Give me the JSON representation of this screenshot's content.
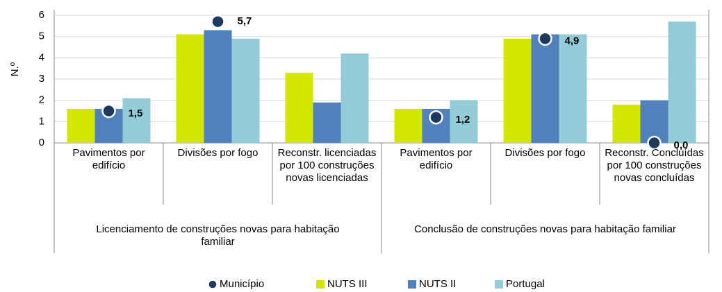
{
  "chart_data": {
    "type": "bar",
    "ylabel": "N.º",
    "categories": [
      "Pavimentos por edifício",
      "Divisões por fogo",
      "Reconstr. licenciadas por 100 construções novas licenciadas",
      "Pavimentos por edifício",
      "Divisões por fogo",
      "Reconstr. Concluídas por 100 construções novas concluídas"
    ],
    "groups": [
      "Licenciamento de construções novas para habitação familiar",
      "Conclusão de construções novas para habitação familiar"
    ],
    "series": [
      {
        "name": "Município",
        "color": "#1f3a5f",
        "marker": "dot",
        "values": [
          1.5,
          5.7,
          null,
          1.2,
          4.9,
          0.0
        ],
        "value_labels": [
          "1,5",
          "5,7",
          null,
          "1,2",
          "4,9",
          "0,0"
        ]
      },
      {
        "name": "NUTS III",
        "color": "#d4e600",
        "values": [
          1.6,
          5.1,
          3.3,
          1.6,
          4.9,
          1.8
        ]
      },
      {
        "name": "NUTS II",
        "color": "#4f81bd",
        "values": [
          1.6,
          5.3,
          1.9,
          1.6,
          5.1,
          2.0
        ]
      },
      {
        "name": "Portugal",
        "color": "#92cdd7",
        "values": [
          2.1,
          4.9,
          4.2,
          2.0,
          5.1,
          5.7
        ]
      }
    ],
    "ylim": [
      0,
      6
    ],
    "yticks": [
      0,
      1,
      2,
      3,
      4,
      5,
      6
    ],
    "grid": true,
    "legend": "bottom"
  }
}
